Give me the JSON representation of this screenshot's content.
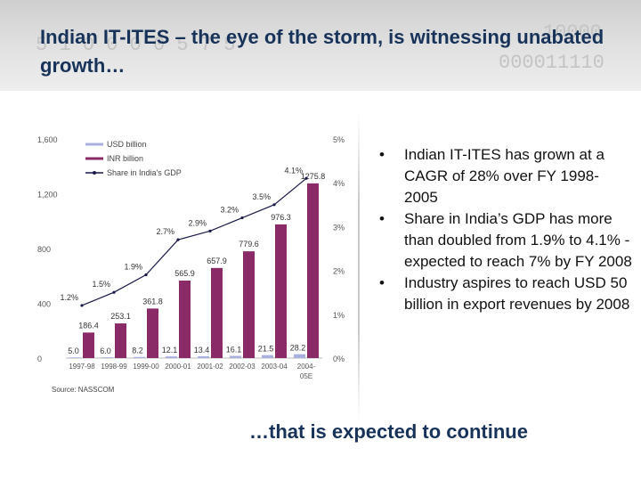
{
  "header": {
    "title": "Indian IT-ITES – the eye of the storm, is witnessing unabated growth…",
    "background_digits": [
      "5 1 0 0 0 0 5 7 5",
      "10000",
      "000011110"
    ]
  },
  "chart_data": {
    "type": "bar+line",
    "categories": [
      "1997-98",
      "1998-99",
      "1999-00",
      "2000-01",
      "2001-02",
      "2002-03",
      "2003-04",
      "2004-05E"
    ],
    "series": [
      {
        "name": "USD billion",
        "type": "bar",
        "axis": "left",
        "color": "#a8b0e0",
        "values": [
          5.0,
          6.0,
          8.2,
          12.1,
          13.4,
          16.1,
          21.5,
          28.2
        ]
      },
      {
        "name": "INR billion",
        "type": "bar",
        "axis": "left",
        "color": "#8a2a66",
        "values": [
          186.4,
          253.1,
          361.8,
          565.9,
          657.9,
          779.6,
          976.3,
          1275.8
        ]
      },
      {
        "name": "Share in India's GDP",
        "type": "line",
        "axis": "right",
        "color": "#1a1a4a",
        "values": [
          1.2,
          1.5,
          1.9,
          2.7,
          2.9,
          3.2,
          3.5,
          4.1
        ],
        "labels": [
          "1.2%",
          "1.5%",
          "1.9%",
          "2.7%",
          "2.9%",
          "3.2%",
          "3.5%",
          "4.1%"
        ]
      }
    ],
    "y_left": {
      "range": [
        0,
        1600
      ],
      "ticks": [
        "0",
        "400",
        "800",
        "1,200",
        "1,600"
      ]
    },
    "y_right": {
      "range": [
        0,
        5
      ],
      "ticks": [
        "0%",
        "1%",
        "2%",
        "3%",
        "4%",
        "5%"
      ]
    },
    "category_labels": [
      "1997-98",
      "1998-99",
      "1999-00",
      "2000-01",
      "2001-02",
      "2002-03",
      "2003-04",
      "2004-\n05E"
    ],
    "legend_position": "top-left",
    "source": "Source: NASSCOM",
    "colors": {
      "usd_bar": "#a8b0e0",
      "inr_bar": "#8a2a66",
      "gdp_line": "#1a1a4a"
    }
  },
  "bullets": [
    "Indian IT-ITES has grown at a CAGR of 28% over FY 1998-2005",
    "Share in India’s GDP has more than doubled from 1.9% to 4.1% - expected to reach 7% by FY 2008",
    "Industry aspires to reach USD 50 billion in export revenues by 2008"
  ],
  "bullet_marker": "•",
  "tagline": "…that is expected to continue"
}
